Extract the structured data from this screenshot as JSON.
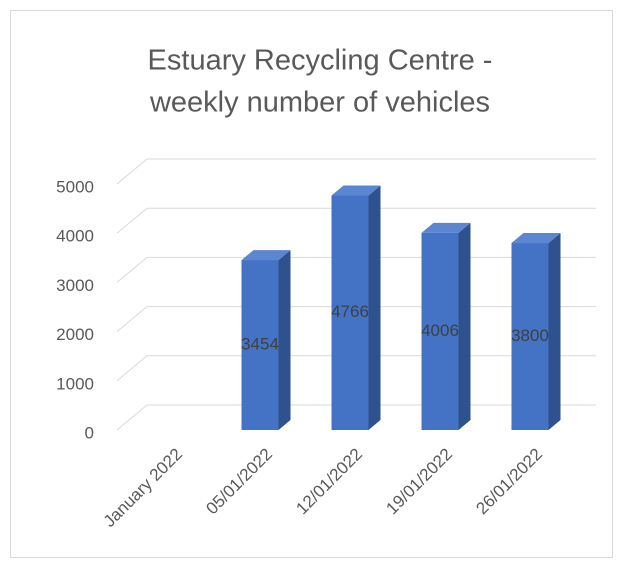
{
  "chart_data": {
    "type": "bar",
    "title_lines": [
      "Estuary Recycling Centre -",
      "weekly number of vehicles"
    ],
    "categories": [
      "January 2022",
      "05/01/2022",
      "12/01/2022",
      "19/01/2022",
      "26/01/2022"
    ],
    "values": [
      null,
      3454,
      4766,
      4006,
      3800
    ],
    "color": "#4472c4",
    "ylim": [
      0,
      5000
    ],
    "yticks": [
      0,
      1000,
      2000,
      3000,
      4000,
      5000
    ],
    "grid": true,
    "three_d": true
  }
}
